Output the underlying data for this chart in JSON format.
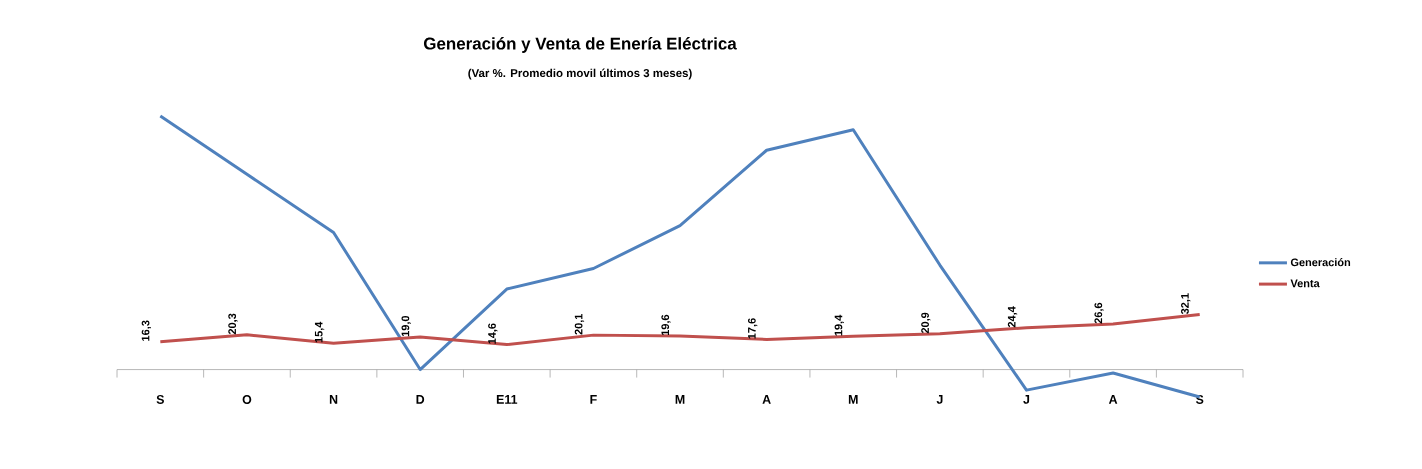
{
  "chart_data": {
    "type": "line",
    "title": "Generación y Venta de Enería Eléctrica",
    "subtitle": "(Var %. Promedio movil últimos 3 meses)",
    "categories": [
      "S",
      "O",
      "N",
      "D",
      "E11",
      "F",
      "M",
      "A",
      "M",
      "J",
      "J",
      "A",
      "S"
    ],
    "legend": "right",
    "marker": "none",
    "series": [
      {
        "name": "Generación",
        "color": "#4f81bd",
        "values": [
          148,
          114,
          80,
          0,
          47,
          59,
          84,
          128,
          140,
          61,
          -12,
          -2,
          -16
        ]
      },
      {
        "name": "Venta",
        "color": "#c0504d",
        "values": [
          16.3,
          20.3,
          15.4,
          19.0,
          14.6,
          20.1,
          19.6,
          17.6,
          19.4,
          20.9,
          24.4,
          26.6,
          32.1
        ],
        "value_labels": [
          "16,3",
          "20,3",
          "15,4",
          "19,0",
          "14,6",
          "20,1",
          "19,6",
          "17,6",
          "19,4",
          "20,9",
          "24,4",
          "26,6",
          "32,1"
        ]
      }
    ]
  }
}
